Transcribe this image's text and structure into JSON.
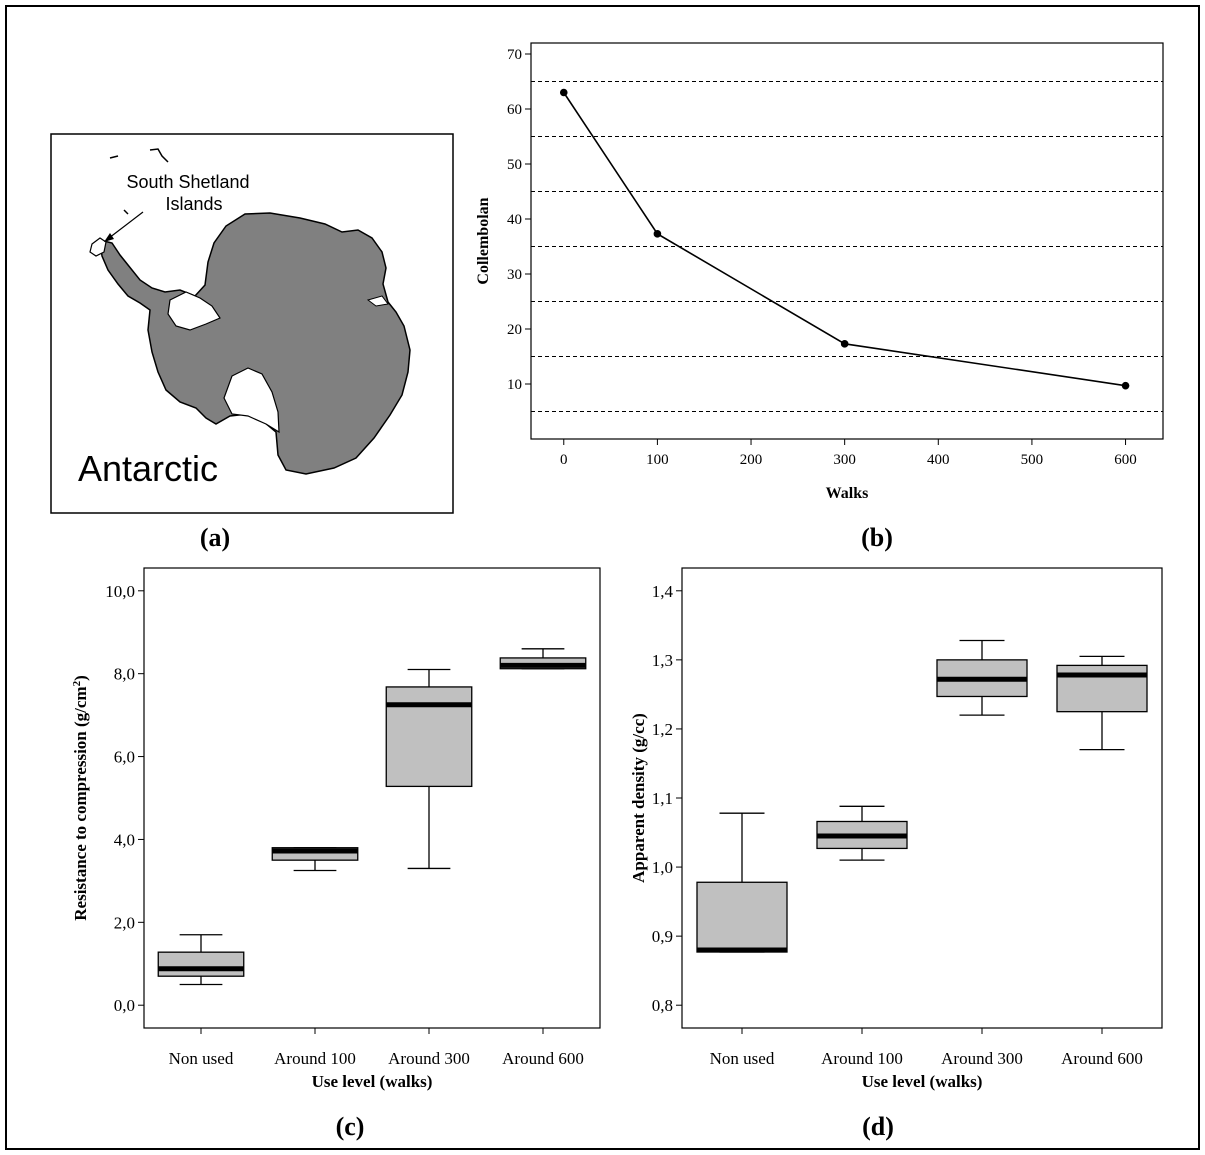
{
  "panel_labels": {
    "a": "(a)",
    "b": "(b)",
    "c": "(c)",
    "d": "(d)"
  },
  "map": {
    "title": "Antarctic",
    "callout_line1": "South Shetland",
    "callout_line2": "Islands",
    "land_color": "#808080"
  },
  "chart_data": [
    {
      "id": "b",
      "type": "line",
      "xlabel": "Walks",
      "ylabel": "Collembolan",
      "x": [
        0,
        100,
        300,
        600
      ],
      "y": [
        63,
        37.3,
        17.3,
        9.7
      ],
      "xlim": [
        -35,
        640
      ],
      "ylim": [
        0,
        72
      ],
      "xticks": [
        "0",
        "100",
        "200",
        "300",
        "400",
        "500",
        "600"
      ],
      "yticks": [
        "10",
        "20",
        "30",
        "40",
        "50",
        "60",
        "70"
      ],
      "gridlines_y": [
        5,
        15,
        25,
        35,
        45,
        55,
        65
      ],
      "grid": "horizontal dashed"
    },
    {
      "id": "c",
      "type": "box",
      "xlabel": "Use level (walks)",
      "ylabel": "Resistance to compression (g/cm",
      "ylabel_sup": "2",
      "ylabel_end": ")",
      "categories": [
        "Non used",
        "Around 100",
        "Around 300",
        "Around 600"
      ],
      "ylim": [
        -0.55,
        10.55
      ],
      "yticks": [
        "0,0",
        "2,0",
        "4,0",
        "6,0",
        "8,0",
        "10,0"
      ],
      "boxes": [
        {
          "min": 0.5,
          "q1": 0.7,
          "median": 0.88,
          "q3": 1.28,
          "max": 1.7
        },
        {
          "min": 3.25,
          "q1": 3.5,
          "median": 3.72,
          "q3": 3.8,
          "max": 3.8
        },
        {
          "min": 3.3,
          "q1": 5.28,
          "median": 7.25,
          "q3": 7.68,
          "max": 8.1
        },
        {
          "min": 8.12,
          "q1": 8.12,
          "median": 8.2,
          "q3": 8.38,
          "max": 8.6
        }
      ],
      "box_color": "#c0c0c0"
    },
    {
      "id": "d",
      "type": "box",
      "xlabel": "Use level (walks)",
      "ylabel": "Apparent density (g/cc)",
      "categories": [
        "Non used",
        "Around 100",
        "Around 300",
        "Around 600"
      ],
      "ylim": [
        0.767,
        1.433
      ],
      "yticks": [
        "0,8",
        "0,9",
        "1,0",
        "1,1",
        "1,2",
        "1,3",
        "1,4"
      ],
      "boxes": [
        {
          "min": 0.877,
          "q1": 0.877,
          "median": 0.88,
          "q3": 0.978,
          "max": 1.078
        },
        {
          "min": 1.01,
          "q1": 1.027,
          "median": 1.045,
          "q3": 1.066,
          "max": 1.088
        },
        {
          "min": 1.22,
          "q1": 1.247,
          "median": 1.272,
          "q3": 1.3,
          "max": 1.328
        },
        {
          "min": 1.17,
          "q1": 1.225,
          "median": 1.278,
          "q3": 1.292,
          "max": 1.305
        }
      ],
      "box_color": "#c0c0c0"
    }
  ]
}
